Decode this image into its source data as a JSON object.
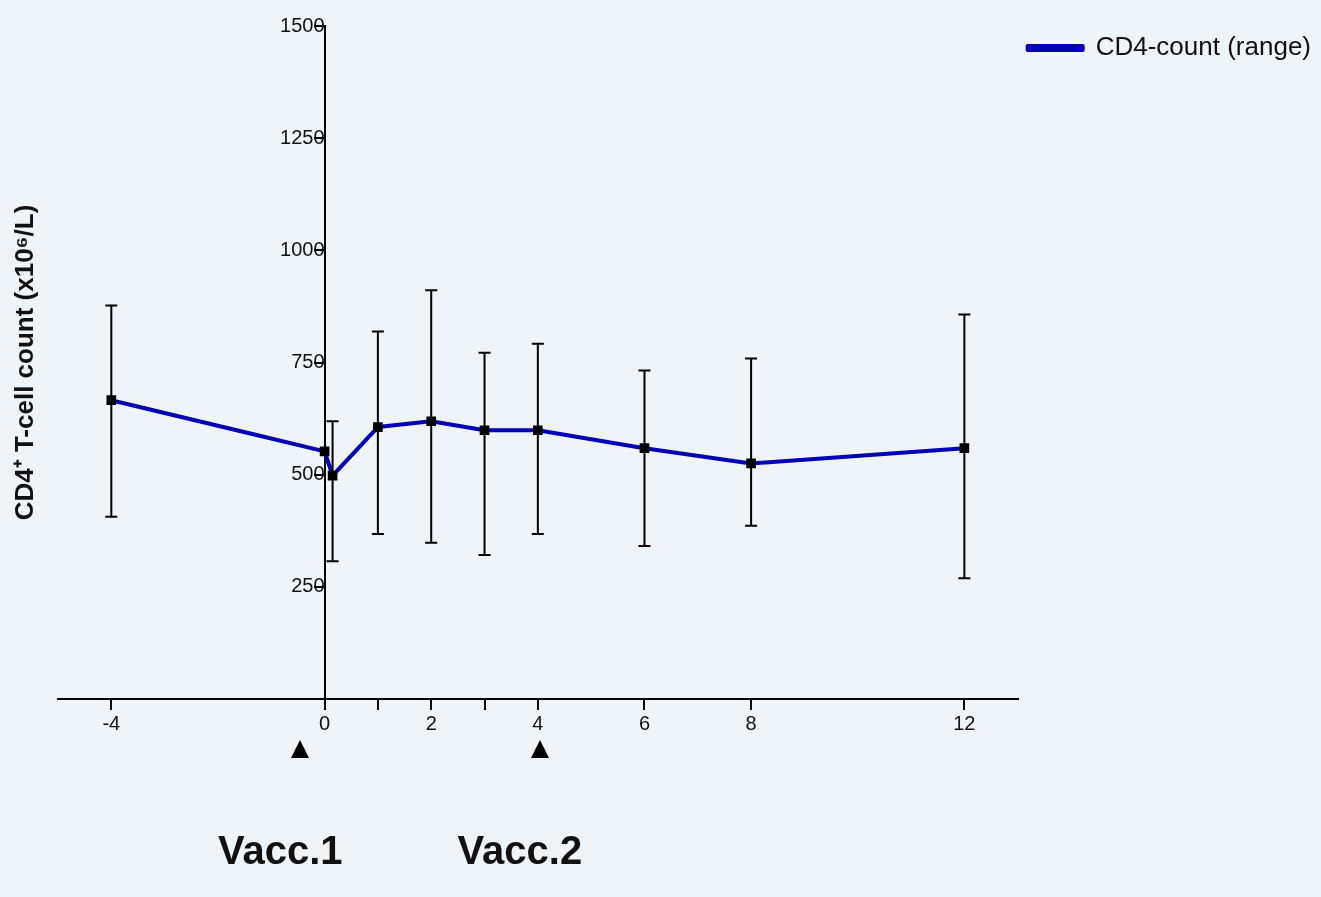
{
  "chart_data": {
    "type": "line",
    "ylabel": "CD4⁺ T-cell count (x10⁶/L)",
    "x": [
      -4,
      0,
      0.15,
      1,
      2,
      3,
      4,
      6,
      8,
      12
    ],
    "series": [
      {
        "name": "CD4-count (range)",
        "color": "#0000b4",
        "values": [
          666,
          552,
          498,
          606,
          619,
          599,
          599,
          559,
          525,
          559
        ],
        "errors": [
          [
            406,
            877
          ],
          null,
          [
            307,
            619
          ],
          [
            368,
            819
          ],
          [
            348,
            911
          ],
          [
            321,
            772
          ],
          [
            368,
            792
          ],
          [
            341,
            732
          ],
          [
            386,
            759
          ],
          [
            269,
            857
          ]
        ]
      }
    ],
    "xlim": [
      -5,
      13
    ],
    "xticks": [
      -4,
      0,
      {
        "value": 1,
        "label": null
      },
      2,
      {
        "value": 3,
        "label": null
      },
      4,
      6,
      8,
      12
    ],
    "ylim": [
      0,
      1500
    ],
    "yticks": [
      250,
      500,
      750,
      1000,
      1250,
      1500
    ],
    "marker": "square",
    "legend": "top right",
    "grid": false,
    "annotations": [
      "Vacc.1",
      "Vacc.2"
    ]
  }
}
